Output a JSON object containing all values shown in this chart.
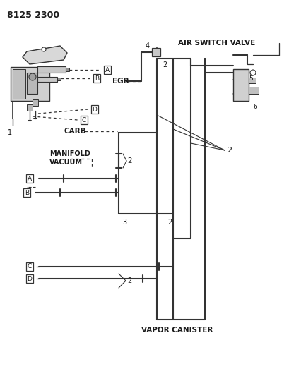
{
  "title": "8125 2300",
  "bg_color": "#ffffff",
  "line_color": "#333333",
  "text_color": "#1a1a1a",
  "figsize": [
    4.1,
    5.33
  ],
  "dpi": 100,
  "labels": {
    "air_switch_valve": "AIR SWITCH VALVE",
    "egr": "EGR",
    "carb": "CARB",
    "manifold_vacuum_1": "MANIFOLD",
    "manifold_vacuum_2": "VACUUM",
    "vapor_canister": "VAPOR CANISTER",
    "item1": "1",
    "item2": "2",
    "item3": "3",
    "item4": "4",
    "item5": "5",
    "item6": "6",
    "A": "A",
    "B": "B",
    "C": "C",
    "D": "D"
  }
}
